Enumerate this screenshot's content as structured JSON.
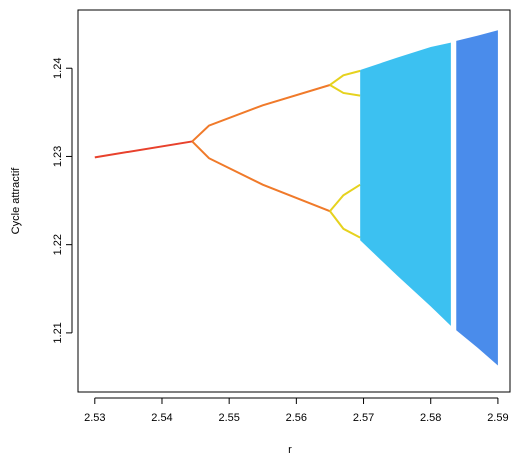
{
  "chart_data": {
    "type": "bifurcation",
    "xlabel": "r",
    "ylabel": "Cycle attractif",
    "xlim": [
      2.5275,
      2.5918
    ],
    "ylim": [
      1.2033,
      1.2466
    ],
    "xticks": [
      2.53,
      2.54,
      2.55,
      2.56,
      2.57,
      2.58,
      2.59
    ],
    "yticks": [
      1.21,
      1.22,
      1.23,
      1.24
    ],
    "series": [
      {
        "color": "#e8412c",
        "x": [
          2.53,
          2.5445
        ],
        "values": [
          1.2299,
          1.2317
        ]
      },
      {
        "color": "#f07a2a",
        "x": [
          2.5445,
          2.547,
          2.555,
          2.565
        ],
        "values": [
          1.2317,
          1.2335,
          1.2358,
          1.2381
        ]
      },
      {
        "color": "#f07a2a",
        "x": [
          2.5445,
          2.547,
          2.555,
          2.565
        ],
        "values": [
          1.2317,
          1.2298,
          1.2268,
          1.2238
        ]
      },
      {
        "color": "#e6d21e",
        "x": [
          2.565,
          2.567,
          2.5695
        ],
        "values": [
          1.2381,
          1.2392,
          1.2397
        ]
      },
      {
        "color": "#e6d21e",
        "x": [
          2.565,
          2.567,
          2.5695
        ],
        "values": [
          1.2381,
          1.2372,
          1.2369
        ]
      },
      {
        "color": "#e6d21e",
        "x": [
          2.565,
          2.567,
          2.5695
        ],
        "values": [
          1.2238,
          1.2256,
          1.2268
        ]
      },
      {
        "color": "#e6d21e",
        "x": [
          2.565,
          2.567,
          2.5695
        ],
        "values": [
          1.2238,
          1.2218,
          1.2208
        ]
      },
      {
        "color": "#1ab6ee",
        "x": [
          2.5695,
          2.575,
          2.58,
          2.583
        ],
        "values": [
          1.2398,
          1.2412,
          1.2424,
          1.2429
        ],
        "low": [
          1.2205,
          1.2165,
          1.213,
          1.2108
        ]
      },
      {
        "color": "#2a78e8",
        "x": [
          2.5838,
          2.587,
          2.59
        ],
        "values": [
          1.2431,
          1.2437,
          1.2443
        ],
        "low": [
          1.2103,
          1.2083,
          1.2063
        ]
      }
    ]
  }
}
